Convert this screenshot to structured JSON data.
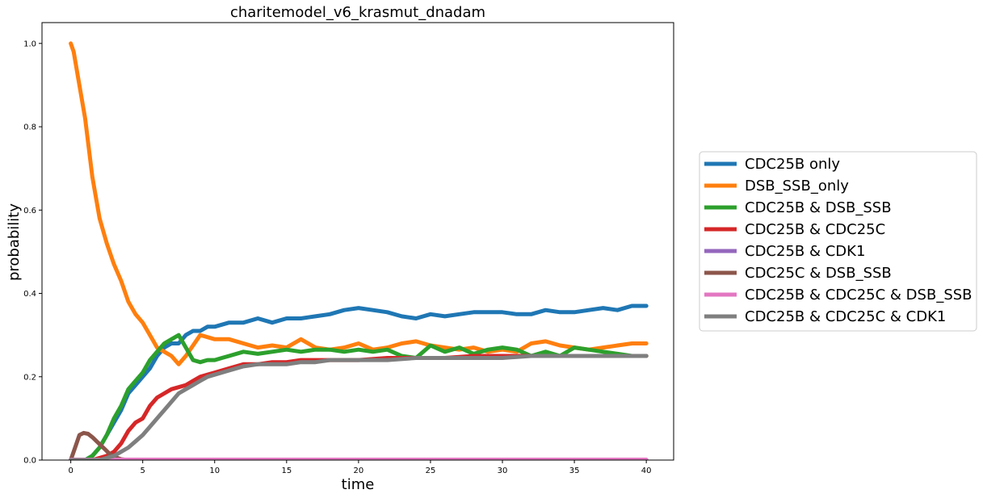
{
  "chart_data": {
    "type": "line",
    "title": "charitemodel_v6_krasmut_dnadam",
    "xlabel": "time",
    "ylabel": "probability",
    "xlim": [
      -2,
      41.9
    ],
    "ylim": [
      0,
      1.05
    ],
    "xticks": [
      0,
      5,
      10,
      15,
      20,
      25,
      30,
      35,
      40
    ],
    "yticks": [
      0.0,
      0.2,
      0.4,
      0.6,
      0.8,
      1.0
    ],
    "xtick_labels": [
      "0",
      "5",
      "10",
      "15",
      "20",
      "25",
      "30",
      "35",
      "40"
    ],
    "ytick_labels": [
      "0.0",
      "0.2",
      "0.4",
      "0.6",
      "0.8",
      "1.0"
    ],
    "grid": false,
    "legend_position": "outside-right",
    "series": [
      {
        "name": "CDC25B only",
        "color": "#1f77b4",
        "x": [
          0,
          1,
          1.5,
          2,
          2.5,
          3,
          3.5,
          4,
          4.5,
          5,
          5.5,
          6,
          6.5,
          7,
          7.5,
          8,
          8.5,
          9,
          9.5,
          10,
          11,
          12,
          13,
          14,
          15,
          16,
          17,
          18,
          19,
          20,
          21,
          22,
          23,
          24,
          25,
          26,
          27,
          28,
          29,
          30,
          31,
          32,
          33,
          34,
          35,
          36,
          37,
          38,
          39,
          40
        ],
        "y": [
          0,
          0,
          0.01,
          0.03,
          0.06,
          0.09,
          0.12,
          0.16,
          0.18,
          0.2,
          0.22,
          0.25,
          0.27,
          0.28,
          0.28,
          0.3,
          0.31,
          0.31,
          0.32,
          0.32,
          0.33,
          0.33,
          0.34,
          0.33,
          0.34,
          0.34,
          0.345,
          0.35,
          0.36,
          0.365,
          0.36,
          0.355,
          0.345,
          0.34,
          0.35,
          0.345,
          0.35,
          0.355,
          0.355,
          0.355,
          0.35,
          0.35,
          0.36,
          0.355,
          0.355,
          0.36,
          0.365,
          0.36,
          0.37,
          0.37
        ]
      },
      {
        "name": "DSB_SSB_only",
        "color": "#ff7f0e",
        "x": [
          0,
          0.2,
          0.5,
          1,
          1.5,
          2,
          2.5,
          3,
          3.5,
          4,
          4.5,
          5,
          5.5,
          6,
          6.5,
          7,
          7.5,
          8,
          9,
          10,
          11,
          12,
          13,
          14,
          15,
          16,
          17,
          18,
          19,
          20,
          21,
          22,
          23,
          24,
          25,
          26,
          27,
          28,
          29,
          30,
          31,
          32,
          33,
          34,
          35,
          36,
          37,
          38,
          39,
          40
        ],
        "y": [
          1.0,
          0.98,
          0.92,
          0.82,
          0.68,
          0.58,
          0.52,
          0.47,
          0.43,
          0.38,
          0.35,
          0.33,
          0.3,
          0.27,
          0.26,
          0.25,
          0.23,
          0.25,
          0.3,
          0.29,
          0.29,
          0.28,
          0.27,
          0.275,
          0.27,
          0.29,
          0.27,
          0.265,
          0.27,
          0.28,
          0.265,
          0.27,
          0.28,
          0.285,
          0.275,
          0.27,
          0.265,
          0.27,
          0.26,
          0.265,
          0.26,
          0.28,
          0.285,
          0.275,
          0.27,
          0.265,
          0.27,
          0.275,
          0.28,
          0.28
        ]
      },
      {
        "name": "CDC25B & DSB_SSB",
        "color": "#2ca02c",
        "x": [
          0,
          1,
          1.5,
          2,
          2.5,
          3,
          3.5,
          4,
          4.5,
          5,
          5.5,
          6,
          6.5,
          7,
          7.5,
          8,
          8.5,
          9,
          9.5,
          10,
          10.5,
          11,
          12,
          13,
          14,
          15,
          16,
          17,
          18,
          19,
          20,
          21,
          22,
          23,
          24,
          25,
          26,
          27,
          28,
          29,
          30,
          31,
          32,
          33,
          34,
          35,
          36,
          37,
          38,
          39,
          40
        ],
        "y": [
          0,
          0,
          0.01,
          0.03,
          0.06,
          0.1,
          0.13,
          0.17,
          0.19,
          0.21,
          0.24,
          0.26,
          0.28,
          0.29,
          0.3,
          0.27,
          0.24,
          0.235,
          0.24,
          0.24,
          0.245,
          0.25,
          0.26,
          0.255,
          0.26,
          0.265,
          0.26,
          0.265,
          0.265,
          0.26,
          0.265,
          0.26,
          0.265,
          0.25,
          0.245,
          0.275,
          0.26,
          0.27,
          0.255,
          0.265,
          0.27,
          0.265,
          0.25,
          0.26,
          0.25,
          0.27,
          0.265,
          0.26,
          0.255,
          0.25,
          0.25
        ]
      },
      {
        "name": "CDC25B & CDC25C",
        "color": "#d62728",
        "x": [
          0,
          1.5,
          2,
          2.5,
          3,
          3.5,
          4,
          4.5,
          5,
          5.5,
          6,
          6.5,
          7,
          7.5,
          8,
          8.5,
          9,
          10,
          11,
          12,
          13,
          14,
          15,
          16,
          17,
          18,
          20,
          22,
          24,
          26,
          28,
          30,
          32,
          34,
          36,
          38,
          40
        ],
        "y": [
          0,
          0,
          0.005,
          0.01,
          0.02,
          0.04,
          0.07,
          0.09,
          0.1,
          0.13,
          0.15,
          0.16,
          0.17,
          0.175,
          0.18,
          0.19,
          0.2,
          0.21,
          0.22,
          0.23,
          0.23,
          0.235,
          0.235,
          0.24,
          0.24,
          0.24,
          0.24,
          0.245,
          0.245,
          0.245,
          0.25,
          0.25,
          0.25,
          0.25,
          0.25,
          0.25,
          0.25
        ]
      },
      {
        "name": "CDC25B & CDK1",
        "color": "#9467bd",
        "x": [
          0,
          40
        ],
        "y": [
          0,
          0
        ]
      },
      {
        "name": "CDC25C & DSB_SSB",
        "color": "#8c564b",
        "x": [
          0,
          0.3,
          0.6,
          0.9,
          1.2,
          1.5,
          1.8,
          2.1,
          2.4,
          2.7,
          3.0,
          3.5,
          4,
          40
        ],
        "y": [
          0,
          0.03,
          0.06,
          0.065,
          0.063,
          0.055,
          0.045,
          0.035,
          0.025,
          0.015,
          0.008,
          0.002,
          0,
          0
        ]
      },
      {
        "name": "CDC25B & CDC25C & DSB_SSB",
        "color": "#e377c2",
        "x": [
          0,
          40
        ],
        "y": [
          0.001,
          0.001
        ]
      },
      {
        "name": "CDC25B & CDC25C & CDK1",
        "color": "#7f7f7f",
        "x": [
          0,
          2,
          2.5,
          3,
          3.5,
          4,
          4.5,
          5,
          5.5,
          6,
          6.5,
          7,
          7.5,
          8,
          8.5,
          9,
          9.5,
          10,
          11,
          12,
          13,
          14,
          15,
          16,
          17,
          18,
          20,
          22,
          24,
          26,
          28,
          30,
          32,
          34,
          36,
          38,
          40
        ],
        "y": [
          0,
          0,
          0.005,
          0.01,
          0.02,
          0.03,
          0.045,
          0.06,
          0.08,
          0.1,
          0.12,
          0.14,
          0.16,
          0.17,
          0.18,
          0.19,
          0.2,
          0.205,
          0.215,
          0.225,
          0.23,
          0.23,
          0.23,
          0.235,
          0.235,
          0.24,
          0.24,
          0.24,
          0.245,
          0.245,
          0.245,
          0.245,
          0.25,
          0.25,
          0.25,
          0.25,
          0.25
        ]
      }
    ]
  }
}
